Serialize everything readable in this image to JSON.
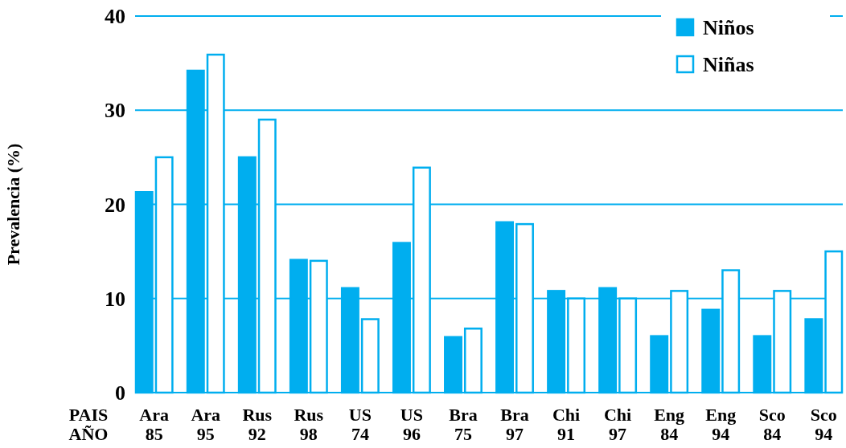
{
  "chart_data": {
    "type": "bar",
    "ylabel": "Prevalencia (%)",
    "xlabel": "PAIS AÑO",
    "categories": [
      "Ara 85",
      "Ara 95",
      "Rus 92",
      "Rus 98",
      "US 74",
      "US 96",
      "Bra 75",
      "Bra 97",
      "Chi 91",
      "Chi 97",
      "Eng 84",
      "Eng 94",
      "Sco 84",
      "Sco 94"
    ],
    "series": [
      {
        "name": "Niños",
        "color": "#00aeef",
        "values": [
          21.3,
          34.2,
          25,
          14.1,
          11.1,
          15.9,
          5.9,
          18.1,
          10.8,
          11.1,
          6,
          8.8,
          6,
          7.8
        ]
      },
      {
        "name": "Niñas",
        "color": "#ffffff",
        "values": [
          25,
          35.9,
          29,
          14,
          7.8,
          23.9,
          6.8,
          17.9,
          10,
          10,
          10.8,
          13,
          10.8,
          15
        ]
      }
    ],
    "ylim": [
      0,
      40
    ],
    "yticks": [
      0,
      10,
      20,
      30,
      40
    ],
    "grid": "y",
    "legend": "top right"
  }
}
